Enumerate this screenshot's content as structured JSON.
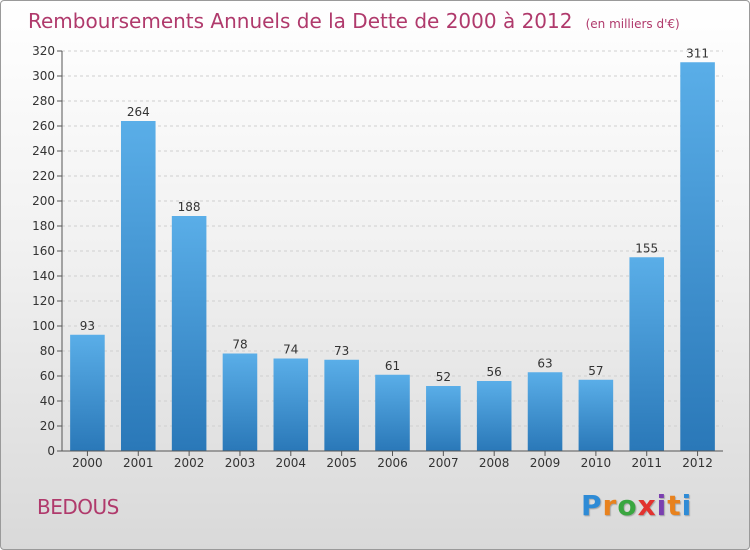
{
  "header": {
    "title": "Remboursements Annuels de la Dette de 2000 à 2012",
    "subtitle": "(en milliers d'€)"
  },
  "footer": {
    "place": "BEDOUS",
    "brand": "Proxiti"
  },
  "colors": {
    "accent": "#b03a6c",
    "bar_light": "#5aaee8",
    "bar_dark": "#2a78b8"
  },
  "chart_data": {
    "type": "bar",
    "title": "Remboursements Annuels de la Dette de 2000 à 2012",
    "subtitle": "(en milliers d'€)",
    "categories": [
      "2000",
      "2001",
      "2002",
      "2003",
      "2004",
      "2005",
      "2006",
      "2007",
      "2008",
      "2009",
      "2010",
      "2011",
      "2012"
    ],
    "values": [
      93,
      264,
      188,
      78,
      74,
      73,
      61,
      52,
      56,
      63,
      57,
      155,
      311
    ],
    "ylim": [
      0,
      320
    ],
    "yticks": [
      0,
      20,
      40,
      60,
      80,
      100,
      120,
      140,
      160,
      180,
      200,
      220,
      240,
      260,
      280,
      300,
      320
    ],
    "grid": true,
    "legend": "none"
  }
}
